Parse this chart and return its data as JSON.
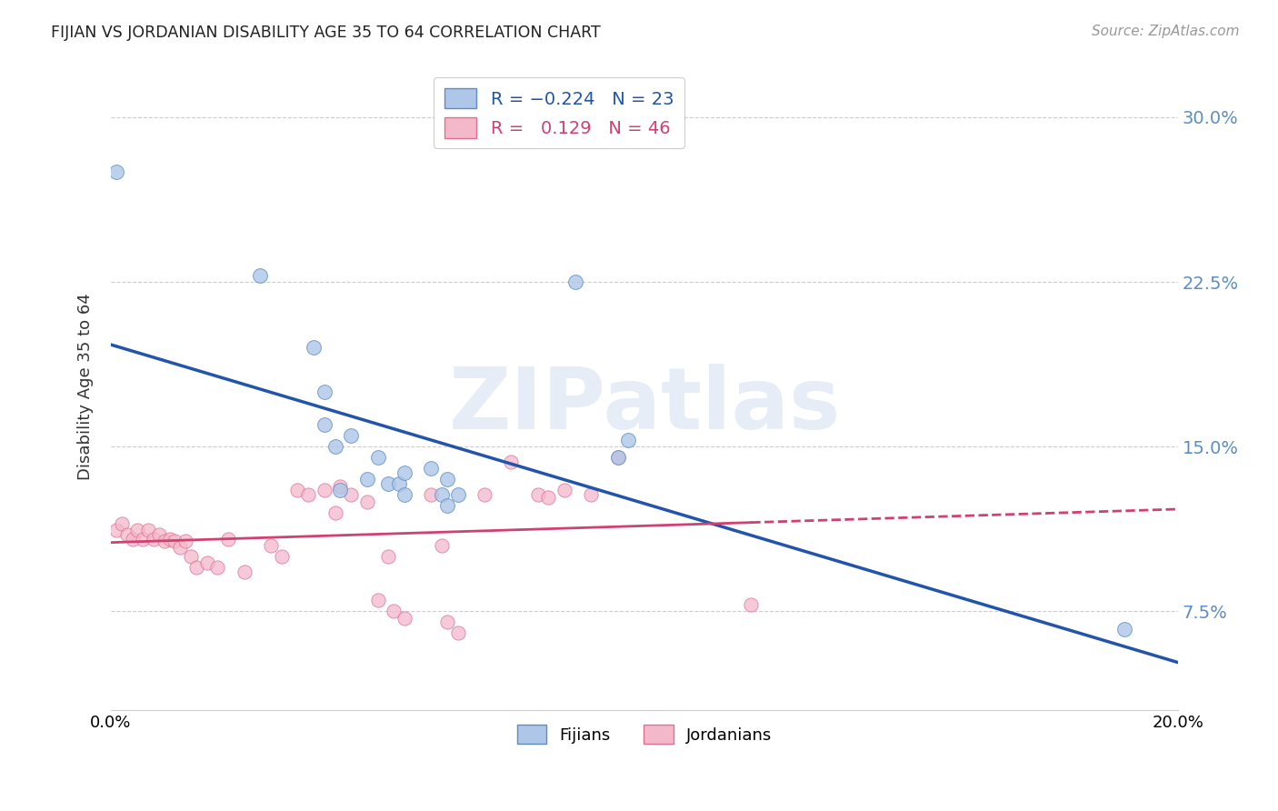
{
  "title": "FIJIAN VS JORDANIAN DISABILITY AGE 35 TO 64 CORRELATION CHART",
  "source": "Source: ZipAtlas.com",
  "ylabel": "Disability Age 35 to 64",
  "ytick_labels": [
    "7.5%",
    "15.0%",
    "22.5%",
    "30.0%"
  ],
  "ytick_values": [
    0.075,
    0.15,
    0.225,
    0.3
  ],
  "xlim": [
    0.0,
    0.2
  ],
  "ylim": [
    0.03,
    0.325
  ],
  "fijian_color": "#aec6e8",
  "jordanian_color": "#f4b8cb",
  "fijian_edge": "#5b8ec4",
  "jordanian_edge": "#e07090",
  "fijian_points": [
    [
      0.001,
      0.275
    ],
    [
      0.028,
      0.228
    ],
    [
      0.038,
      0.195
    ],
    [
      0.04,
      0.175
    ],
    [
      0.04,
      0.16
    ],
    [
      0.042,
      0.15
    ],
    [
      0.043,
      0.13
    ],
    [
      0.045,
      0.155
    ],
    [
      0.048,
      0.135
    ],
    [
      0.05,
      0.145
    ],
    [
      0.052,
      0.133
    ],
    [
      0.054,
      0.133
    ],
    [
      0.055,
      0.138
    ],
    [
      0.055,
      0.128
    ],
    [
      0.06,
      0.14
    ],
    [
      0.062,
      0.128
    ],
    [
      0.063,
      0.135
    ],
    [
      0.063,
      0.123
    ],
    [
      0.065,
      0.128
    ],
    [
      0.087,
      0.225
    ],
    [
      0.095,
      0.145
    ],
    [
      0.097,
      0.153
    ],
    [
      0.19,
      0.067
    ]
  ],
  "jordanian_points": [
    [
      0.001,
      0.112
    ],
    [
      0.002,
      0.115
    ],
    [
      0.003,
      0.11
    ],
    [
      0.004,
      0.108
    ],
    [
      0.005,
      0.112
    ],
    [
      0.006,
      0.108
    ],
    [
      0.007,
      0.112
    ],
    [
      0.008,
      0.108
    ],
    [
      0.009,
      0.11
    ],
    [
      0.01,
      0.107
    ],
    [
      0.011,
      0.108
    ],
    [
      0.012,
      0.107
    ],
    [
      0.013,
      0.104
    ],
    [
      0.014,
      0.107
    ],
    [
      0.015,
      0.1
    ],
    [
      0.016,
      0.095
    ],
    [
      0.018,
      0.097
    ],
    [
      0.02,
      0.095
    ],
    [
      0.022,
      0.108
    ],
    [
      0.025,
      0.093
    ],
    [
      0.03,
      0.105
    ],
    [
      0.032,
      0.1
    ],
    [
      0.035,
      0.13
    ],
    [
      0.037,
      0.128
    ],
    [
      0.04,
      0.13
    ],
    [
      0.042,
      0.12
    ],
    [
      0.043,
      0.132
    ],
    [
      0.045,
      0.128
    ],
    [
      0.048,
      0.125
    ],
    [
      0.05,
      0.08
    ],
    [
      0.052,
      0.1
    ],
    [
      0.053,
      0.075
    ],
    [
      0.055,
      0.072
    ],
    [
      0.06,
      0.128
    ],
    [
      0.062,
      0.105
    ],
    [
      0.063,
      0.07
    ],
    [
      0.065,
      0.065
    ],
    [
      0.07,
      0.128
    ],
    [
      0.075,
      0.143
    ],
    [
      0.08,
      0.128
    ],
    [
      0.082,
      0.127
    ],
    [
      0.085,
      0.13
    ],
    [
      0.09,
      0.128
    ],
    [
      0.095,
      0.145
    ],
    [
      0.12,
      0.078
    ]
  ],
  "fijian_line_color": "#2255aa",
  "jordanian_line_color": "#d04070",
  "watermark": "ZIPatlas",
  "background_color": "#ffffff",
  "grid_color": "#cccccc",
  "bottom_legend_labels": [
    "Fijians",
    "Jordanians"
  ]
}
